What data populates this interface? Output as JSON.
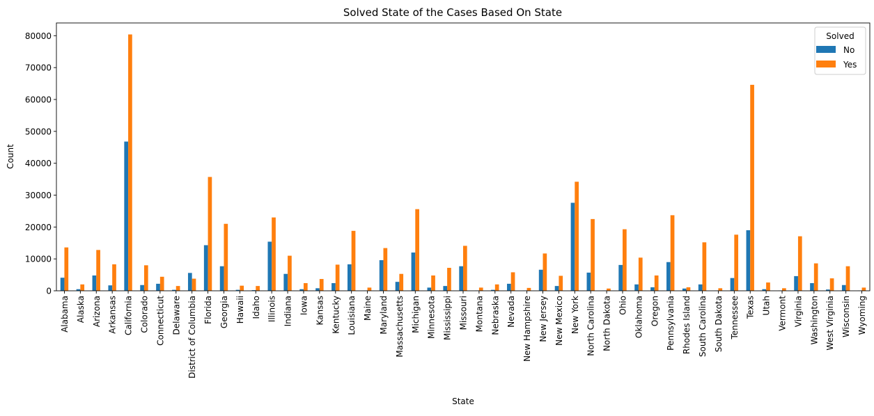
{
  "chart_data": {
    "type": "bar",
    "title": "Solved State of the Cases Based On State",
    "xlabel": "State",
    "ylabel": "Count",
    "ylim": [
      0,
      84000
    ],
    "yticks": [
      0,
      10000,
      20000,
      30000,
      40000,
      50000,
      60000,
      70000,
      80000
    ],
    "grid": false,
    "legend": {
      "title": "Solved",
      "placement": "top-right"
    },
    "categories": [
      "Alabama",
      "Alaska",
      "Arizona",
      "Arkansas",
      "California",
      "Colorado",
      "Connecticut",
      "Delaware",
      "District of Columbia",
      "Florida",
      "Georgia",
      "Hawaii",
      "Idaho",
      "Illinois",
      "Indiana",
      "Iowa",
      "Kansas",
      "Kentucky",
      "Louisiana",
      "Maine",
      "Maryland",
      "Massachusetts",
      "Michigan",
      "Minnesota",
      "Mississippi",
      "Missouri",
      "Montana",
      "Nebraska",
      "Nevada",
      "New Hampshire",
      "New Jersey",
      "New Mexico",
      "New York",
      "North Carolina",
      "North Dakota",
      "Ohio",
      "Oklahoma",
      "Oregon",
      "Pennsylvania",
      "Rhodes Island",
      "South Carolina",
      "South Dakota",
      "Tennessee",
      "Texas",
      "Utah",
      "Vermont",
      "Virginia",
      "Washington",
      "West Virginia",
      "Wisconsin",
      "Wyoming"
    ],
    "series": [
      {
        "name": "No",
        "color": "#1f77b4",
        "values": [
          4100,
          500,
          4800,
          1700,
          46800,
          1800,
          2200,
          300,
          5600,
          14300,
          7700,
          300,
          200,
          15400,
          5300,
          500,
          800,
          2400,
          8300,
          100,
          9600,
          2800,
          12000,
          1000,
          1500,
          7700,
          100,
          300,
          2200,
          100,
          6600,
          1500,
          27600,
          5700,
          100,
          8100,
          2000,
          1100,
          9000,
          700,
          2000,
          100,
          4000,
          19000,
          500,
          100,
          4600,
          2400,
          400,
          1800,
          100
        ]
      },
      {
        "name": "Yes",
        "color": "#ff7f0e",
        "values": [
          13600,
          2000,
          12800,
          8300,
          80400,
          8000,
          4400,
          1500,
          3800,
          35700,
          21000,
          1600,
          1500,
          23000,
          11000,
          2400,
          3700,
          8200,
          18800,
          1000,
          13400,
          5300,
          25600,
          4800,
          7200,
          14100,
          1000,
          2000,
          5800,
          900,
          11700,
          4700,
          34200,
          22500,
          700,
          19300,
          10400,
          4800,
          23700,
          1100,
          15200,
          800,
          17600,
          64600,
          2600,
          800,
          17100,
          8600,
          3900,
          7700,
          1000
        ]
      }
    ]
  }
}
